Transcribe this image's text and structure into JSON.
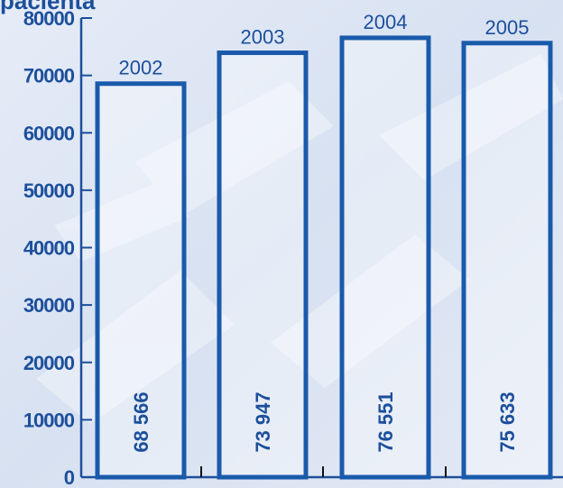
{
  "chart_data": {
    "type": "bar",
    "title": "pacienta",
    "categories": [
      "2002",
      "2003",
      "2004",
      "2005"
    ],
    "values": [
      68566,
      73947,
      76551,
      75633
    ],
    "value_labels": [
      "68 566",
      "73 947",
      "76 551",
      "75 633"
    ],
    "yticks": [
      0,
      10000,
      20000,
      30000,
      40000,
      50000,
      60000,
      70000,
      80000
    ],
    "ylim": [
      0,
      80000
    ],
    "xlabel": "",
    "ylabel": "",
    "grid": false,
    "colors": {
      "axis": "#1c4f9c",
      "bar_outline": "#1a5aab",
      "bar_fill": "#ffffff",
      "text": "#1c4f9c",
      "background": "#dfe7f4"
    }
  }
}
